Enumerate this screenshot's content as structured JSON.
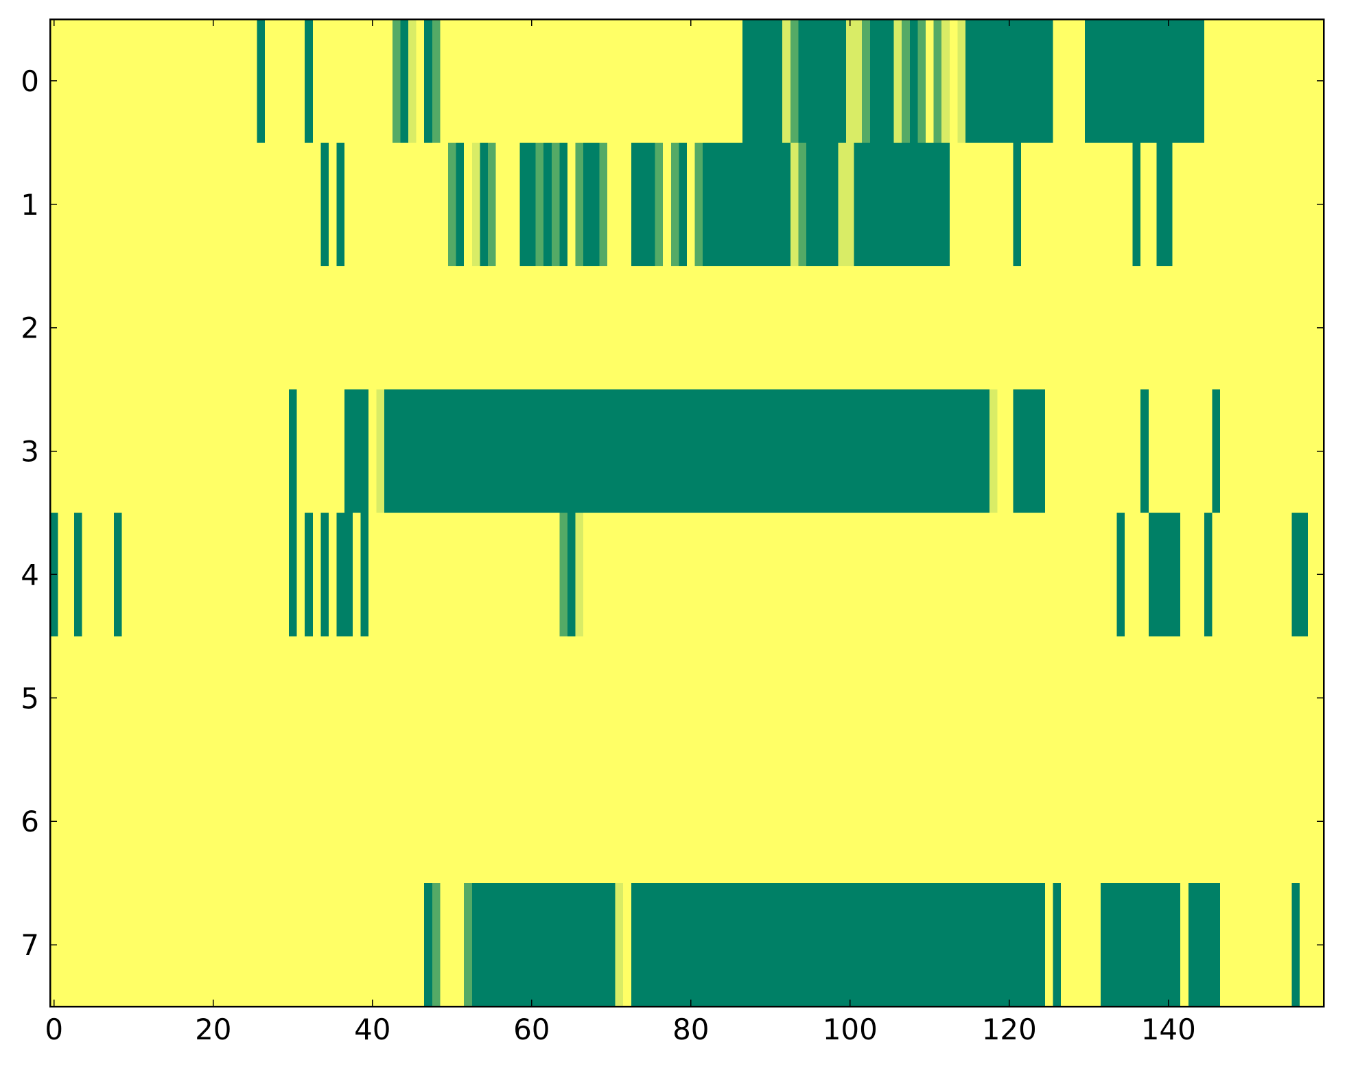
{
  "chart_data": {
    "type": "heatmap",
    "colormap": "summer",
    "xlim": [
      -0.5,
      159.5
    ],
    "ylim": [
      7.5,
      -0.5
    ],
    "xticks": [
      0,
      20,
      40,
      60,
      80,
      100,
      120,
      140
    ],
    "yticks": [
      0,
      1,
      2,
      3,
      4,
      5,
      6,
      7
    ],
    "z": [
      [
        1,
        1,
        1,
        1,
        1,
        1,
        1,
        1,
        1,
        1,
        1,
        1,
        1,
        1,
        1,
        1,
        1,
        1,
        1,
        1,
        1,
        1,
        1,
        1,
        1,
        1,
        0,
        1,
        1,
        1,
        1,
        1,
        0,
        1,
        1,
        1,
        1,
        1,
        1,
        1,
        1,
        1,
        1,
        0.33,
        0,
        0.85,
        1,
        0,
        0.33,
        1,
        1,
        1,
        1,
        1,
        1,
        1,
        1,
        1,
        1,
        1,
        1,
        1,
        1,
        1,
        1,
        1,
        1,
        1,
        1,
        1,
        1,
        1,
        1,
        1,
        1,
        1,
        1,
        1,
        1,
        1,
        1,
        1,
        1,
        1,
        1,
        1,
        1,
        0,
        0,
        0,
        0,
        0,
        0.85,
        0.33,
        0,
        0,
        0,
        0,
        0,
        0,
        0.85,
        0.85,
        0.33,
        0,
        0,
        0,
        0.85,
        0.33,
        0,
        0.33,
        1,
        0.33,
        0.85,
        1,
        0.85,
        0,
        0,
        0,
        0,
        0,
        0,
        0,
        0,
        0,
        0,
        0,
        1,
        1,
        1,
        1,
        0,
        0,
        0,
        0,
        0,
        0,
        0,
        0,
        0,
        0,
        0,
        0,
        0,
        0,
        0,
        1,
        1,
        1,
        1,
        1,
        1,
        1,
        1,
        1,
        1,
        1,
        1,
        1,
        1,
        1
      ],
      [
        1,
        1,
        1,
        1,
        1,
        1,
        1,
        1,
        1,
        1,
        1,
        1,
        1,
        1,
        1,
        1,
        1,
        1,
        1,
        1,
        1,
        1,
        1,
        1,
        1,
        1,
        1,
        1,
        1,
        1,
        1,
        1,
        1,
        1,
        0,
        1,
        0,
        1,
        1,
        1,
        1,
        1,
        1,
        1,
        1,
        1,
        1,
        1,
        1,
        1,
        0.33,
        0,
        1,
        0.85,
        0,
        0.33,
        1,
        1,
        1,
        0,
        0,
        0.33,
        0,
        0.33,
        0,
        1,
        0.33,
        0,
        0,
        0.33,
        1,
        1,
        1,
        0,
        0,
        0,
        0.33,
        1,
        0.33,
        0,
        1,
        0.33,
        0,
        0,
        0,
        0,
        0,
        0,
        0,
        0,
        0,
        0,
        0,
        0.85,
        0.33,
        0,
        0,
        0,
        0,
        0.85,
        0.85,
        0,
        0,
        0,
        0,
        0,
        0,
        0,
        0,
        0,
        0,
        0,
        0,
        1,
        1,
        1,
        1,
        1,
        1,
        1,
        1,
        0,
        1,
        1,
        1,
        1,
        1,
        1,
        1,
        1,
        1,
        1,
        1,
        1,
        1,
        1,
        0,
        1,
        1,
        0,
        0,
        1,
        1,
        1,
        1,
        1,
        1,
        1,
        1,
        1,
        1,
        1,
        1,
        1,
        1,
        1,
        1,
        1,
        1,
        1
      ],
      [
        1,
        1,
        1,
        1,
        1,
        1,
        1,
        1,
        1,
        1,
        1,
        1,
        1,
        1,
        1,
        1,
        1,
        1,
        1,
        1,
        1,
        1,
        1,
        1,
        1,
        1,
        1,
        1,
        1,
        1,
        1,
        1,
        1,
        1,
        1,
        1,
        1,
        1,
        1,
        1,
        1,
        1,
        1,
        1,
        1,
        1,
        1,
        1,
        1,
        1,
        1,
        1,
        1,
        1,
        1,
        1,
        1,
        1,
        1,
        1,
        1,
        1,
        1,
        1,
        1,
        1,
        1,
        1,
        1,
        1,
        1,
        1,
        1,
        1,
        1,
        1,
        1,
        1,
        1,
        1,
        1,
        1,
        1,
        1,
        1,
        1,
        1,
        1,
        1,
        1,
        1,
        1,
        1,
        1,
        1,
        1,
        1,
        1,
        1,
        1,
        1,
        1,
        1,
        1,
        1,
        1,
        1,
        1,
        1,
        1,
        1,
        1,
        1,
        1,
        1,
        1,
        1,
        1,
        1,
        1,
        1,
        1,
        1,
        1,
        1,
        1,
        1,
        1,
        1,
        1,
        1,
        1,
        1,
        1,
        1,
        1,
        1,
        1,
        1,
        1,
        1,
        1,
        1,
        1,
        1,
        1,
        1,
        1,
        1,
        1,
        1,
        1,
        1,
        1,
        1,
        1,
        1,
        1,
        1,
        1
      ],
      [
        1,
        1,
        1,
        1,
        1,
        1,
        1,
        1,
        1,
        1,
        1,
        1,
        1,
        1,
        1,
        1,
        1,
        1,
        1,
        1,
        1,
        1,
        1,
        1,
        1,
        1,
        1,
        1,
        1,
        1,
        0,
        1,
        1,
        1,
        1,
        1,
        1,
        0,
        0,
        0,
        1,
        0.85,
        0,
        0,
        0,
        0,
        0,
        0,
        0,
        0,
        0,
        0,
        0,
        0,
        0,
        0,
        0,
        0,
        0,
        0,
        0,
        0,
        0,
        0,
        0,
        0,
        0,
        0,
        0,
        0,
        0,
        0,
        0,
        0,
        0,
        0,
        0,
        0,
        0,
        0,
        0,
        0,
        0,
        0,
        0,
        0,
        0,
        0,
        0,
        0,
        0,
        0,
        0,
        0,
        0,
        0,
        0,
        0,
        0,
        0,
        0,
        0,
        0,
        0,
        0,
        0,
        0,
        0,
        0,
        0,
        0,
        0,
        0,
        0,
        0,
        0,
        0,
        0,
        0.85,
        1,
        1,
        0,
        0,
        0,
        0,
        1,
        1,
        1,
        1,
        1,
        1,
        1,
        1,
        1,
        1,
        1,
        1,
        0,
        1,
        1,
        1,
        1,
        1,
        1,
        1,
        1,
        0,
        1,
        1,
        1,
        1,
        1,
        1,
        1,
        1,
        1,
        1,
        1,
        1,
        1
      ],
      [
        0,
        1,
        1,
        0,
        1,
        1,
        1,
        1,
        0,
        1,
        1,
        1,
        1,
        1,
        1,
        1,
        1,
        1,
        1,
        1,
        1,
        1,
        1,
        1,
        1,
        1,
        1,
        1,
        1,
        1,
        0,
        1,
        0,
        1,
        0,
        1,
        0,
        0,
        1,
        0,
        1,
        1,
        1,
        1,
        1,
        1,
        1,
        1,
        1,
        1,
        1,
        1,
        1,
        1,
        1,
        1,
        1,
        1,
        1,
        1,
        1,
        1,
        1,
        1,
        0.33,
        0,
        0.85,
        1,
        1,
        1,
        1,
        1,
        1,
        1,
        1,
        1,
        1,
        1,
        1,
        1,
        1,
        1,
        1,
        1,
        1,
        1,
        1,
        1,
        1,
        1,
        1,
        1,
        1,
        1,
        1,
        1,
        1,
        1,
        1,
        1,
        1,
        1,
        1,
        1,
        1,
        1,
        1,
        1,
        1,
        1,
        1,
        1,
        1,
        1,
        1,
        1,
        1,
        1,
        1,
        1,
        1,
        1,
        1,
        1,
        1,
        1,
        1,
        1,
        1,
        1,
        1,
        1,
        1,
        1,
        0,
        1,
        1,
        1,
        0,
        0,
        0,
        0,
        1,
        1,
        1,
        0,
        1,
        1,
        1,
        1,
        1,
        1,
        1,
        1,
        1,
        1,
        0,
        0,
        1,
        1
      ],
      [
        1,
        1,
        1,
        1,
        1,
        1,
        1,
        1,
        1,
        1,
        1,
        1,
        1,
        1,
        1,
        1,
        1,
        1,
        1,
        1,
        1,
        1,
        1,
        1,
        1,
        1,
        1,
        1,
        1,
        1,
        1,
        1,
        1,
        1,
        1,
        1,
        1,
        1,
        1,
        1,
        1,
        1,
        1,
        1,
        1,
        1,
        1,
        1,
        1,
        1,
        1,
        1,
        1,
        1,
        1,
        1,
        1,
        1,
        1,
        1,
        1,
        1,
        1,
        1,
        1,
        1,
        1,
        1,
        1,
        1,
        1,
        1,
        1,
        1,
        1,
        1,
        1,
        1,
        1,
        1,
        1,
        1,
        1,
        1,
        1,
        1,
        1,
        1,
        1,
        1,
        1,
        1,
        1,
        1,
        1,
        1,
        1,
        1,
        1,
        1,
        1,
        1,
        1,
        1,
        1,
        1,
        1,
        1,
        1,
        1,
        1,
        1,
        1,
        1,
        1,
        1,
        1,
        1,
        1,
        1,
        1,
        1,
        1,
        1,
        1,
        1,
        1,
        1,
        1,
        1,
        1,
        1,
        1,
        1,
        1,
        1,
        1,
        1,
        1,
        1,
        1,
        1,
        1,
        1,
        1,
        1,
        1,
        1,
        1,
        1,
        1,
        1,
        1,
        1,
        1,
        1,
        1,
        1,
        1,
        1
      ],
      [
        1,
        1,
        1,
        1,
        1,
        1,
        1,
        1,
        1,
        1,
        1,
        1,
        1,
        1,
        1,
        1,
        1,
        1,
        1,
        1,
        1,
        1,
        1,
        1,
        1,
        1,
        1,
        1,
        1,
        1,
        1,
        1,
        1,
        1,
        1,
        1,
        1,
        1,
        1,
        1,
        1,
        1,
        1,
        1,
        1,
        1,
        1,
        1,
        1,
        1,
        1,
        1,
        1,
        1,
        1,
        1,
        1,
        1,
        1,
        1,
        1,
        1,
        1,
        1,
        1,
        1,
        1,
        1,
        1,
        1,
        1,
        1,
        1,
        1,
        1,
        1,
        1,
        1,
        1,
        1,
        1,
        1,
        1,
        1,
        1,
        1,
        1,
        1,
        1,
        1,
        1,
        1,
        1,
        1,
        1,
        1,
        1,
        1,
        1,
        1,
        1,
        1,
        1,
        1,
        1,
        1,
        1,
        1,
        1,
        1,
        1,
        1,
        1,
        1,
        1,
        1,
        1,
        1,
        1,
        1,
        1,
        1,
        1,
        1,
        1,
        1,
        1,
        1,
        1,
        1,
        1,
        1,
        1,
        1,
        1,
        1,
        1,
        1,
        1,
        1,
        1,
        1,
        1,
        1,
        1,
        1,
        1,
        1,
        1,
        1,
        1,
        1,
        1,
        1,
        1,
        1,
        1,
        1,
        1,
        1
      ],
      [
        1,
        1,
        1,
        1,
        1,
        1,
        1,
        1,
        1,
        1,
        1,
        1,
        1,
        1,
        1,
        1,
        1,
        1,
        1,
        1,
        1,
        1,
        1,
        1,
        1,
        1,
        1,
        1,
        1,
        1,
        1,
        1,
        1,
        1,
        1,
        1,
        1,
        1,
        1,
        1,
        1,
        1,
        1,
        1,
        1,
        1,
        1,
        0,
        0.33,
        1,
        1,
        1,
        0.33,
        0,
        0,
        0,
        0,
        0,
        0,
        0,
        0,
        0,
        0,
        0,
        0,
        0,
        0,
        0,
        0,
        0,
        0,
        0.85,
        1,
        0,
        0,
        0,
        0,
        0,
        0,
        0,
        0,
        0,
        0,
        0,
        0,
        0,
        0,
        0,
        0,
        0,
        0,
        0,
        0,
        0,
        0,
        0,
        0,
        0,
        0,
        0,
        0,
        0,
        0,
        0,
        0,
        0,
        0,
        0,
        0,
        0,
        0,
        0,
        0,
        0,
        0,
        0,
        0,
        0,
        0,
        0,
        0,
        0,
        0,
        0,
        0,
        1,
        0,
        1,
        1,
        1,
        1,
        1,
        0,
        0,
        0,
        0,
        0,
        0,
        0,
        0,
        0,
        0,
        1,
        0,
        0,
        0,
        0,
        1,
        1,
        1,
        1,
        1,
        1,
        1,
        1,
        1,
        0,
        1,
        1,
        1
      ]
    ]
  }
}
